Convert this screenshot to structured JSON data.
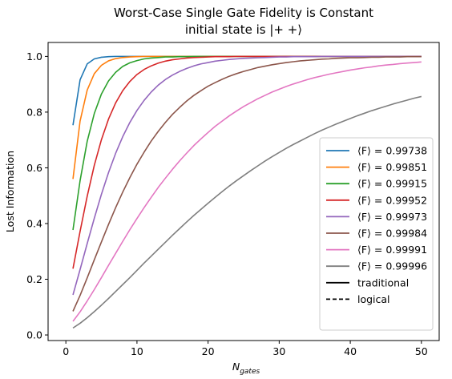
{
  "chart_data": {
    "type": "line",
    "title": "Worst-Case Single Gate Fidelity is Constant",
    "subtitle": "initial state is |+ +⟩",
    "xlabel": "N",
    "xlabel_sub": "gates",
    "ylabel": "Lost Information",
    "xlim": [
      -2.5,
      52.5
    ],
    "ylim": [
      -0.02,
      1.05
    ],
    "xticks": [
      0,
      10,
      20,
      30,
      40,
      50
    ],
    "yticks": [
      0.0,
      0.2,
      0.4,
      0.6,
      0.8,
      1.0
    ],
    "xtick_labels": [
      "0",
      "10",
      "20",
      "30",
      "40",
      "50"
    ],
    "ytick_labels": [
      "0.0",
      "0.2",
      "0.4",
      "0.6",
      "0.8",
      "1.0"
    ],
    "grid": false,
    "legend_position": "lower-right",
    "x": [
      1,
      2,
      3,
      4,
      5,
      6,
      7,
      8,
      9,
      10,
      11,
      12,
      13,
      14,
      15,
      16,
      17,
      18,
      19,
      20,
      21,
      22,
      23,
      24,
      25,
      26,
      27,
      28,
      29,
      30,
      31,
      32,
      33,
      34,
      35,
      36,
      37,
      38,
      39,
      40,
      41,
      42,
      43,
      44,
      45,
      46,
      47,
      48,
      49,
      50
    ],
    "series": [
      {
        "name": "⟨F⟩ = 0.99738",
        "color": "#1f77b4",
        "values": [
          0.753,
          0.916,
          0.973,
          0.991,
          0.997,
          0.999,
          1.0,
          1.0,
          1.0,
          1.0,
          1.0,
          1.0,
          1.0,
          1.0,
          1.0,
          1.0,
          1.0,
          1.0,
          1.0,
          1.0,
          1.0,
          1.0,
          1.0,
          1.0,
          1.0,
          1.0,
          1.0,
          1.0,
          1.0,
          1.0,
          1.0,
          1.0,
          1.0,
          1.0,
          1.0,
          1.0,
          1.0,
          1.0,
          1.0,
          1.0,
          1.0,
          1.0,
          1.0,
          1.0,
          1.0,
          1.0,
          1.0,
          1.0,
          1.0,
          1.0
        ]
      },
      {
        "name": "⟨F⟩ = 0.99851",
        "color": "#ff7f0e",
        "values": [
          0.56,
          0.768,
          0.879,
          0.938,
          0.968,
          0.984,
          0.992,
          0.996,
          0.998,
          0.999,
          1.0,
          1.0,
          1.0,
          1.0,
          1.0,
          1.0,
          1.0,
          1.0,
          1.0,
          1.0,
          1.0,
          1.0,
          1.0,
          1.0,
          1.0,
          1.0,
          1.0,
          1.0,
          1.0,
          1.0,
          1.0,
          1.0,
          1.0,
          1.0,
          1.0,
          1.0,
          1.0,
          1.0,
          1.0,
          1.0,
          1.0,
          1.0,
          1.0,
          1.0,
          1.0,
          1.0,
          1.0,
          1.0,
          1.0,
          1.0
        ]
      },
      {
        "name": "⟨F⟩ = 0.99915",
        "color": "#2ca02c",
        "values": [
          0.377,
          0.554,
          0.695,
          0.795,
          0.865,
          0.912,
          0.943,
          0.964,
          0.977,
          0.985,
          0.991,
          0.994,
          0.996,
          0.998,
          0.998,
          0.999,
          0.999,
          1.0,
          1.0,
          1.0,
          1.0,
          1.0,
          1.0,
          1.0,
          1.0,
          1.0,
          1.0,
          1.0,
          1.0,
          1.0,
          1.0,
          1.0,
          1.0,
          1.0,
          1.0,
          1.0,
          1.0,
          1.0,
          1.0,
          1.0,
          1.0,
          1.0,
          1.0,
          1.0,
          1.0,
          1.0,
          1.0,
          1.0,
          1.0,
          1.0
        ]
      },
      {
        "name": "⟨F⟩ = 0.99952",
        "color": "#d62728",
        "values": [
          0.238,
          0.372,
          0.498,
          0.609,
          0.701,
          0.775,
          0.833,
          0.877,
          0.91,
          0.935,
          0.953,
          0.966,
          0.976,
          0.983,
          0.988,
          0.991,
          0.994,
          0.996,
          0.997,
          0.998,
          0.999,
          0.999,
          0.999,
          1.0,
          1.0,
          1.0,
          1.0,
          1.0,
          1.0,
          1.0,
          1.0,
          1.0,
          1.0,
          1.0,
          1.0,
          1.0,
          1.0,
          1.0,
          1.0,
          1.0,
          1.0,
          1.0,
          1.0,
          1.0,
          1.0,
          1.0,
          1.0,
          1.0,
          1.0,
          1.0
        ]
      },
      {
        "name": "⟨F⟩ = 0.99973",
        "color": "#9467bd",
        "values": [
          0.144,
          0.235,
          0.328,
          0.419,
          0.505,
          0.583,
          0.652,
          0.712,
          0.763,
          0.806,
          0.842,
          0.872,
          0.897,
          0.917,
          0.933,
          0.946,
          0.957,
          0.966,
          0.973,
          0.978,
          0.983,
          0.986,
          0.989,
          0.991,
          0.993,
          0.994,
          0.995,
          0.996,
          0.997,
          0.998,
          0.998,
          0.999,
          0.999,
          0.999,
          0.999,
          1.0,
          1.0,
          1.0,
          1.0,
          1.0,
          1.0,
          1.0,
          1.0,
          1.0,
          1.0,
          1.0,
          1.0,
          1.0,
          1.0,
          1.0
        ]
      },
      {
        "name": "⟨F⟩ = 0.99984",
        "color": "#8c564b",
        "values": [
          0.085,
          0.142,
          0.205,
          0.27,
          0.334,
          0.397,
          0.457,
          0.513,
          0.565,
          0.613,
          0.656,
          0.696,
          0.731,
          0.763,
          0.792,
          0.817,
          0.84,
          0.86,
          0.877,
          0.893,
          0.906,
          0.918,
          0.929,
          0.938,
          0.946,
          0.953,
          0.96,
          0.965,
          0.97,
          0.974,
          0.978,
          0.981,
          0.984,
          0.986,
          0.988,
          0.99,
          0.991,
          0.993,
          0.994,
          0.995,
          0.995,
          0.996,
          0.997,
          0.997,
          0.998,
          0.998,
          0.998,
          0.999,
          0.999,
          0.999
        ]
      },
      {
        "name": "⟨F⟩ = 0.99991",
        "color": "#e377c2",
        "values": [
          0.049,
          0.083,
          0.122,
          0.163,
          0.206,
          0.25,
          0.293,
          0.336,
          0.378,
          0.418,
          0.457,
          0.494,
          0.53,
          0.563,
          0.595,
          0.625,
          0.653,
          0.68,
          0.704,
          0.727,
          0.749,
          0.768,
          0.787,
          0.804,
          0.82,
          0.834,
          0.848,
          0.86,
          0.872,
          0.882,
          0.892,
          0.901,
          0.909,
          0.917,
          0.924,
          0.93,
          0.936,
          0.941,
          0.946,
          0.951,
          0.955,
          0.959,
          0.962,
          0.966,
          0.969,
          0.971,
          0.974,
          0.976,
          0.978,
          0.98
        ]
      },
      {
        "name": "⟨F⟩ = 0.99996",
        "color": "#7f7f7f",
        "values": [
          0.025,
          0.042,
          0.062,
          0.084,
          0.107,
          0.131,
          0.156,
          0.181,
          0.206,
          0.232,
          0.258,
          0.283,
          0.308,
          0.333,
          0.358,
          0.382,
          0.406,
          0.429,
          0.451,
          0.473,
          0.494,
          0.515,
          0.535,
          0.554,
          0.572,
          0.59,
          0.607,
          0.624,
          0.64,
          0.655,
          0.67,
          0.684,
          0.697,
          0.71,
          0.723,
          0.735,
          0.746,
          0.757,
          0.767,
          0.777,
          0.787,
          0.796,
          0.805,
          0.813,
          0.821,
          0.829,
          0.836,
          0.843,
          0.85,
          0.856
        ]
      }
    ],
    "legend_styles": [
      {
        "name": "traditional",
        "dash": "solid"
      },
      {
        "name": "logical",
        "dash": "dashed"
      }
    ]
  }
}
